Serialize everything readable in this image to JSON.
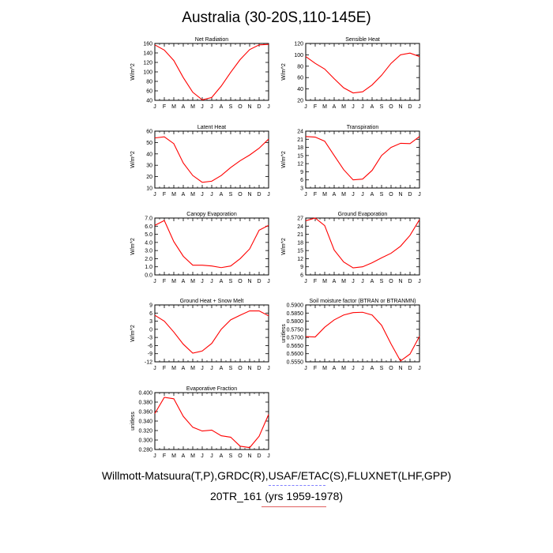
{
  "title": "Australia (30-20S,110-145E)",
  "footer_line1": "Willmott-Matsuura(T,P),GRDC(R),USAF/ETAC(S),FLUXNET(LHF,GPP)",
  "footer_line2": "20TR_161 (yrs 1959-1978)",
  "colors": {
    "series": "#ff0000",
    "axis": "#000000",
    "background": "#ffffff"
  },
  "chart_data": [
    {
      "type": "line",
      "title": "Net Radiation",
      "ylabel": "W/m^2",
      "x": [
        "J",
        "F",
        "M",
        "A",
        "M",
        "J",
        "J",
        "A",
        "S",
        "O",
        "N",
        "D",
        "J"
      ],
      "ylim": [
        40,
        160
      ],
      "yticks": [
        "40",
        "60",
        "80",
        "100",
        "120",
        "140",
        "160"
      ],
      "values": [
        157,
        146,
        124,
        88,
        57,
        41,
        46,
        70,
        99,
        126,
        147,
        157,
        158
      ]
    },
    {
      "type": "line",
      "title": "Sensible Heat",
      "ylabel": "W/m^2",
      "x": [
        "J",
        "F",
        "M",
        "A",
        "M",
        "J",
        "J",
        "A",
        "S",
        "O",
        "N",
        "D",
        "J"
      ],
      "ylim": [
        20,
        120
      ],
      "yticks": [
        "20",
        "40",
        "60",
        "80",
        "100",
        "120"
      ],
      "values": [
        97,
        85,
        75,
        58,
        42,
        33,
        35,
        47,
        64,
        85,
        100,
        103,
        97
      ]
    },
    {
      "type": "line",
      "title": "Latent Heat",
      "ylabel": "W/m^2",
      "x": [
        "J",
        "F",
        "M",
        "A",
        "M",
        "J",
        "J",
        "A",
        "S",
        "O",
        "N",
        "D",
        "J"
      ],
      "ylim": [
        10,
        60
      ],
      "yticks": [
        "10",
        "20",
        "30",
        "40",
        "50",
        "60"
      ],
      "values": [
        54,
        55,
        49,
        32,
        21,
        15,
        16,
        21,
        28,
        34,
        39,
        45,
        53
      ]
    },
    {
      "type": "line",
      "title": "Transpiration",
      "ylabel": "W/m^2",
      "x": [
        "J",
        "F",
        "M",
        "A",
        "M",
        "J",
        "J",
        "A",
        "S",
        "O",
        "N",
        "D",
        "J"
      ],
      "ylim": [
        3,
        24
      ],
      "yticks": [
        "3",
        "6",
        "9",
        "12",
        "15",
        "18",
        "21",
        "24"
      ],
      "values": [
        22,
        21.8,
        20.3,
        15,
        9.8,
        6,
        6.3,
        9.5,
        15,
        18,
        19.5,
        19.4,
        22
      ]
    },
    {
      "type": "line",
      "title": "Canopy Evaporation",
      "ylabel": "W/m^2",
      "x": [
        "J",
        "F",
        "M",
        "A",
        "M",
        "J",
        "J",
        "A",
        "S",
        "O",
        "N",
        "D",
        "J"
      ],
      "ylim": [
        0,
        7
      ],
      "yticks": [
        "0.0",
        "1.0",
        "2.0",
        "3.0",
        "4.0",
        "5.0",
        "6.0",
        "7.0"
      ],
      "values": [
        6.1,
        6.7,
        4.1,
        2.3,
        1.2,
        1.2,
        1.1,
        0.9,
        1.1,
        2.0,
        3.2,
        5.5,
        6.1
      ]
    },
    {
      "type": "line",
      "title": "Ground Evaporation",
      "ylabel": "W/m^2",
      "x": [
        "J",
        "F",
        "M",
        "A",
        "M",
        "J",
        "J",
        "A",
        "S",
        "O",
        "N",
        "D",
        "J"
      ],
      "ylim": [
        6,
        27
      ],
      "yticks": [
        "6",
        "9",
        "12",
        "15",
        "18",
        "21",
        "24",
        "27"
      ],
      "values": [
        26,
        27,
        24.2,
        15.2,
        10.8,
        8.6,
        9,
        10.5,
        12.3,
        14,
        16.6,
        20.6,
        26.4
      ]
    },
    {
      "type": "line",
      "title": "Ground Heat + Snow Melt",
      "ylabel": "W/m^2",
      "x": [
        "J",
        "F",
        "M",
        "A",
        "M",
        "J",
        "J",
        "A",
        "S",
        "O",
        "N",
        "D",
        "J"
      ],
      "ylim": [
        -12,
        9
      ],
      "yticks": [
        "-12",
        "-9",
        "-6",
        "-3",
        "0",
        "3",
        "6",
        "9"
      ],
      "values": [
        5.2,
        3,
        -1,
        -5.5,
        -8.8,
        -8,
        -5.2,
        0,
        3.5,
        5.2,
        6.8,
        6.8,
        5
      ]
    },
    {
      "type": "line",
      "title": "Soil moisture factor (BTRAN or BTRANMN)",
      "ylabel": "unitless",
      "x": [
        "J",
        "F",
        "M",
        "A",
        "M",
        "J",
        "J",
        "A",
        "S",
        "O",
        "N",
        "D",
        "J"
      ],
      "ylim": [
        0.555,
        0.59
      ],
      "yticks": [
        "0.5550",
        "0.5600",
        "0.5650",
        "0.5700",
        "0.5750",
        "0.5800",
        "0.5850",
        "0.5900"
      ],
      "values": [
        0.5705,
        0.5703,
        0.5763,
        0.5808,
        0.5838,
        0.5853,
        0.5855,
        0.5838,
        0.5775,
        0.566,
        0.5555,
        0.5598,
        0.5707
      ]
    },
    {
      "type": "line",
      "title": "Evaporative Fraction",
      "ylabel": "unitless",
      "x": [
        "J",
        "F",
        "M",
        "A",
        "M",
        "J",
        "J",
        "A",
        "S",
        "O",
        "N",
        "D",
        "J"
      ],
      "ylim": [
        0.28,
        0.4
      ],
      "yticks": [
        "0.280",
        "0.300",
        "0.320",
        "0.340",
        "0.360",
        "0.380",
        "0.400"
      ],
      "values": [
        0.356,
        0.39,
        0.387,
        0.35,
        0.327,
        0.319,
        0.321,
        0.309,
        0.306,
        0.287,
        0.284,
        0.308,
        0.354
      ]
    }
  ]
}
